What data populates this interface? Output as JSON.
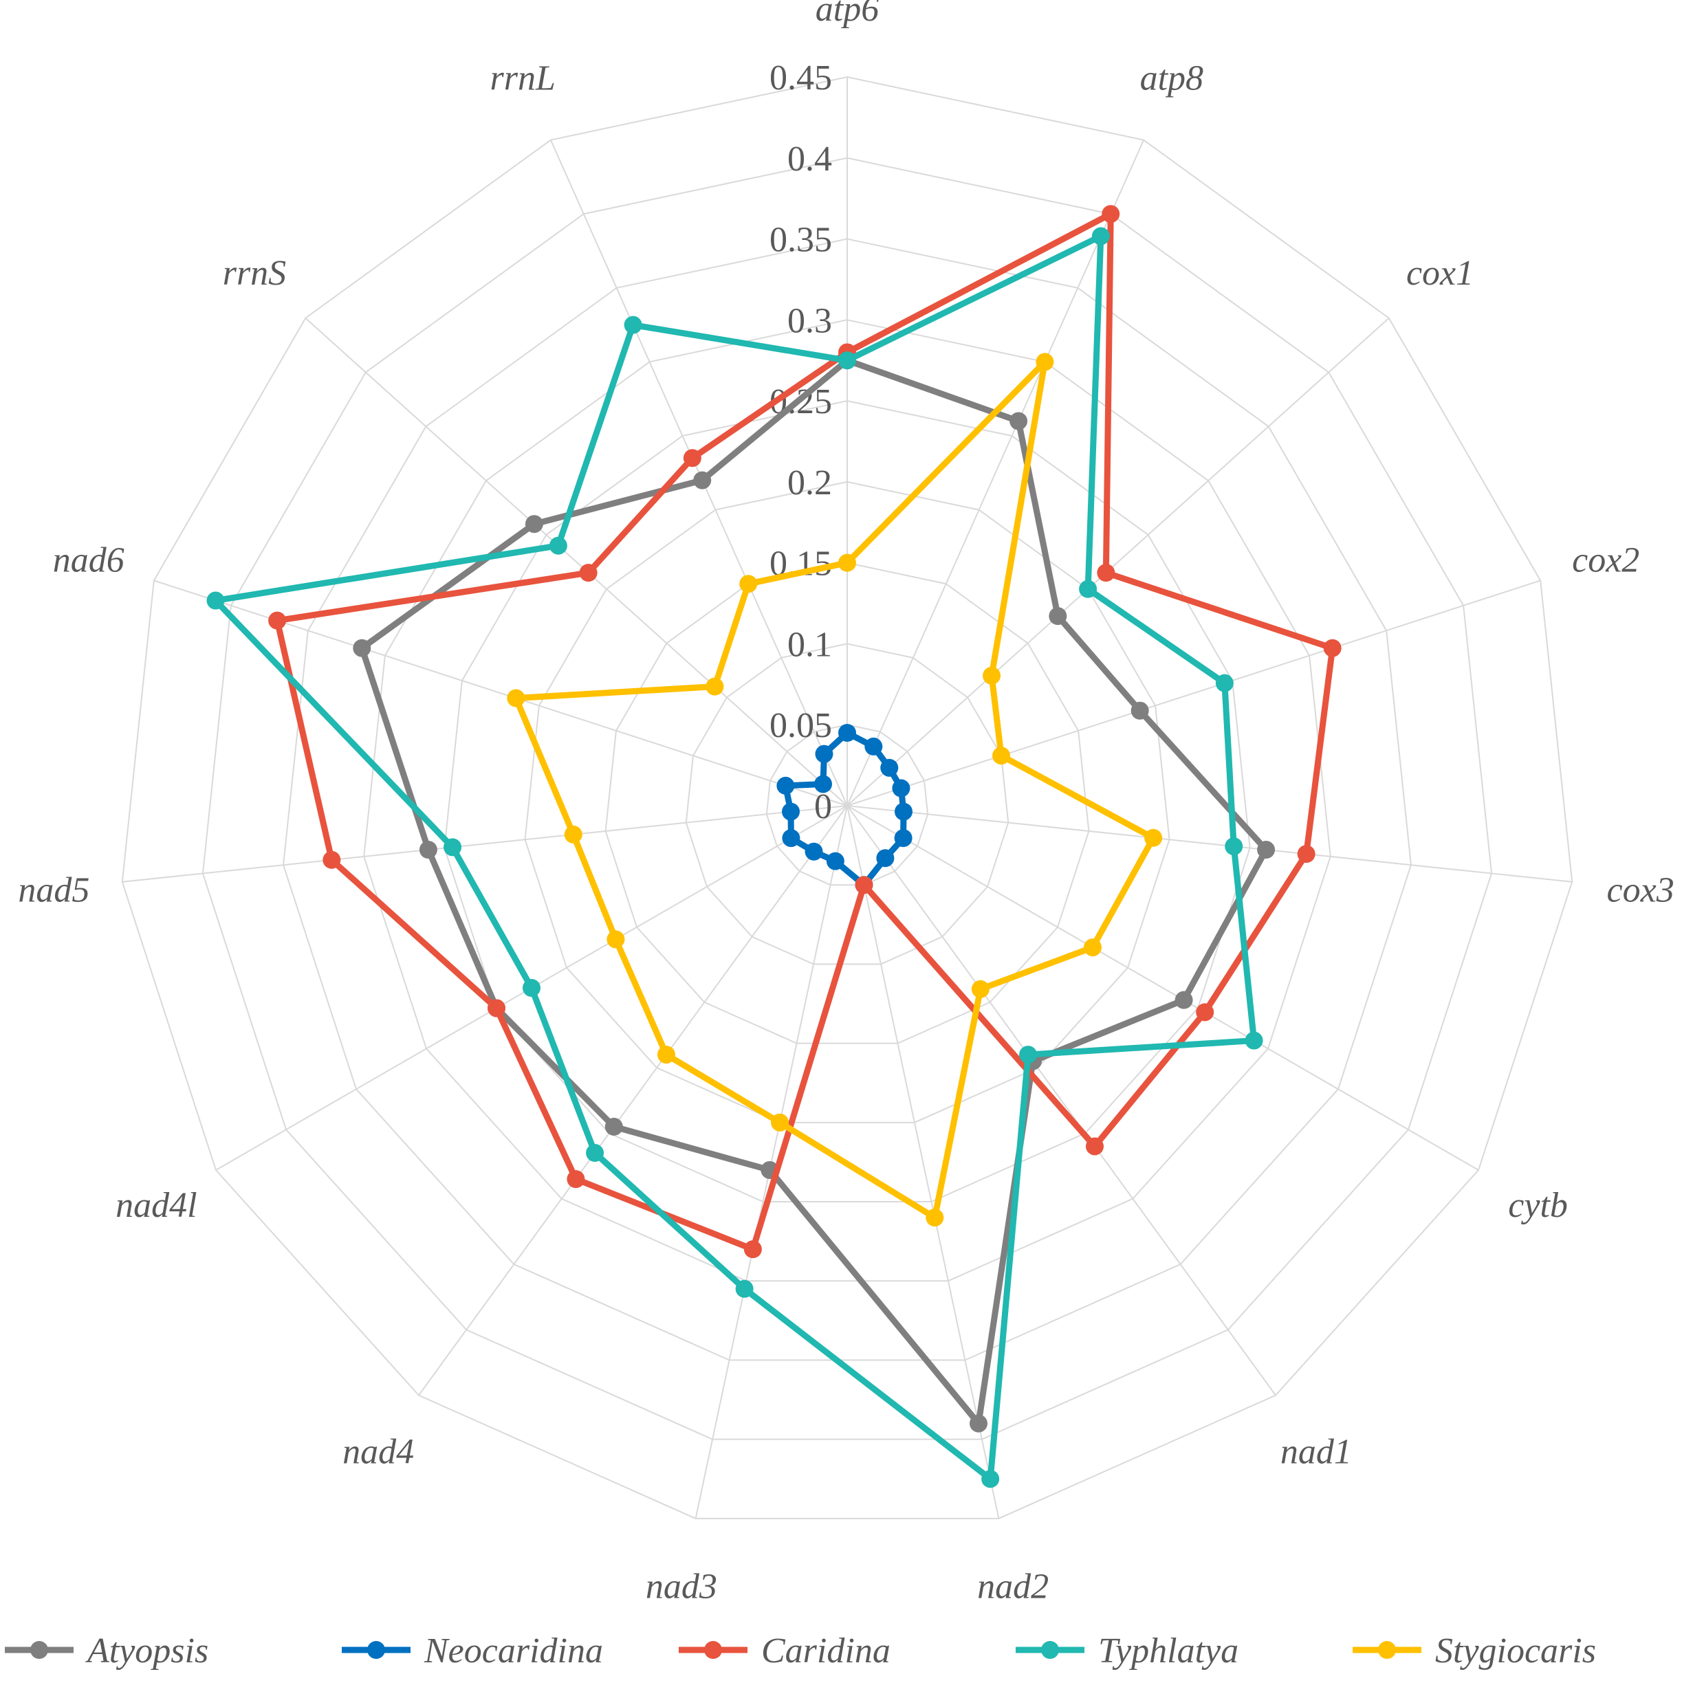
{
  "chart_data": {
    "type": "radar",
    "title": "",
    "categories": [
      "atp6",
      "atp8",
      "cox1",
      "cox2",
      "cox3",
      "cytb",
      "nad1",
      "nad2",
      "nad3",
      "nad4",
      "nad4l",
      "nad5",
      "nad6",
      "rrnS",
      "rrnL"
    ],
    "tick_labels": [
      "0",
      "0.05",
      "0.1",
      "0.15",
      "0.2",
      "0.25",
      "0.3",
      "0.35",
      "0.4",
      "0.45"
    ],
    "rlim": [
      0,
      0.45
    ],
    "grid": true,
    "legend_position": "bottom",
    "series": [
      {
        "name": "Atyopsis",
        "color": "#7f7f7f",
        "values": [
          0.275,
          0.26,
          0.175,
          0.19,
          0.26,
          0.24,
          0.195,
          0.39,
          0.23,
          0.245,
          0.25,
          0.26,
          0.315,
          0.26,
          0.22
        ]
      },
      {
        "name": "Neocaridina",
        "color": "#0070c0",
        "values": [
          0.045,
          0.04,
          0.035,
          0.035,
          0.035,
          0.04,
          0.04,
          0.05,
          0.035,
          0.035,
          0.04,
          0.035,
          0.04,
          0.02,
          0.035
        ]
      },
      {
        "name": "Caridina",
        "color": "#e8533e",
        "values": [
          0.28,
          0.4,
          0.215,
          0.315,
          0.285,
          0.255,
          0.26,
          0.05,
          0.28,
          0.285,
          0.25,
          0.32,
          0.37,
          0.215,
          0.235
        ]
      },
      {
        "name": "Typhlatya",
        "color": "#20b8b0",
        "values": [
          0.275,
          0.385,
          0.2,
          0.245,
          0.24,
          0.29,
          0.19,
          0.425,
          0.305,
          0.265,
          0.225,
          0.245,
          0.41,
          0.24,
          0.325
        ]
      },
      {
        "name": "Stygiocaris",
        "color": "#ffc000",
        "values": [
          0.15,
          0.3,
          0.12,
          0.1,
          0.19,
          0.175,
          0.14,
          0.26,
          0.2,
          0.19,
          0.165,
          0.17,
          0.215,
          0.11,
          0.15
        ]
      }
    ]
  }
}
